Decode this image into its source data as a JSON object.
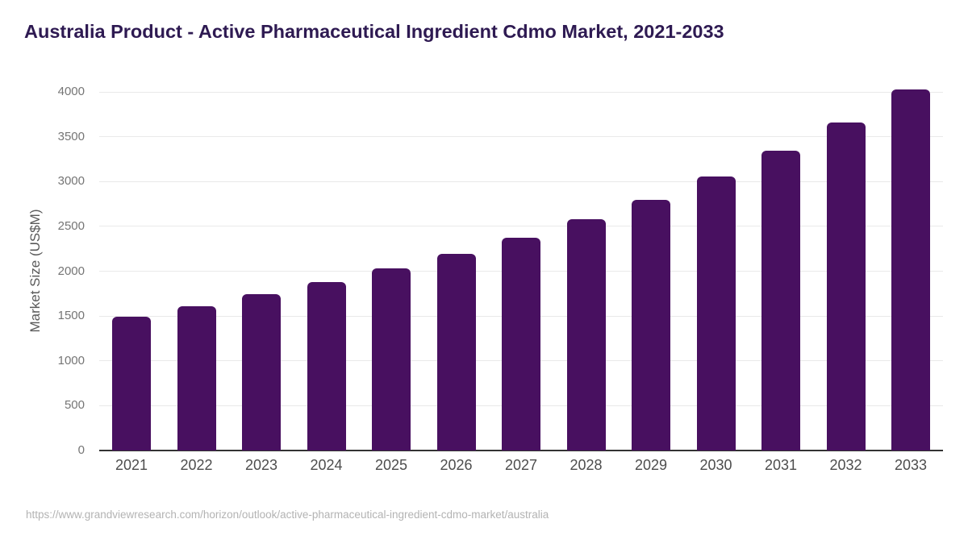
{
  "header": {
    "title": "Australia Product - Active Pharmaceutical Ingredient Cdmo Market, 2021-2033"
  },
  "footer": {
    "source_url": "https://www.grandviewresearch.com/horizon/outlook/active-pharmaceutical-ingredient-cdmo-market/australia"
  },
  "chart_data": {
    "type": "bar",
    "title": "Australia Product - Active Pharmaceutical Ingredient Cdmo Market, 2021-2033",
    "categories": [
      "2021",
      "2022",
      "2023",
      "2024",
      "2025",
      "2026",
      "2027",
      "2028",
      "2029",
      "2030",
      "2031",
      "2032",
      "2033"
    ],
    "values": [
      1490,
      1610,
      1740,
      1880,
      2030,
      2195,
      2370,
      2580,
      2800,
      3055,
      3340,
      3655,
      4025
    ],
    "xlabel": "",
    "ylabel": "Market Size (US$M)",
    "ylim": [
      0,
      4000
    ],
    "yticks": [
      0,
      500,
      1000,
      1500,
      2000,
      2500,
      3000,
      3500,
      4000
    ],
    "grid": "horizontal",
    "legend": "none"
  },
  "colors": {
    "bar": "#481060",
    "title": "#2e1a52",
    "ytick_label": "#757575",
    "xtick_label": "#4d4d4d",
    "axis_line": "#333333",
    "gridline": "#e9e9e9",
    "footer_text": "#b3b3b3",
    "background": "#ffffff"
  }
}
